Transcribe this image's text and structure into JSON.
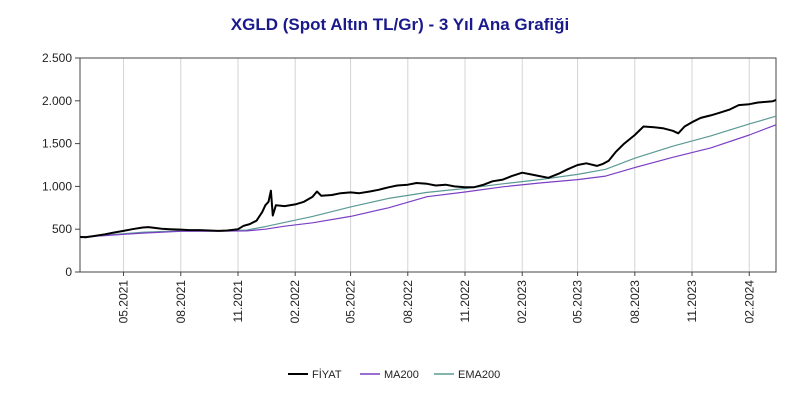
{
  "chart_data": {
    "type": "line",
    "title": "XGLD (Spot Altın TL/Gr) - 3 Yıl Ana Grafiği",
    "title_color": "#1a1a8c",
    "xlabel": "",
    "ylabel": "",
    "x_range": [
      "2021-02-20",
      "2024-03-15"
    ],
    "ylim": [
      0,
      2500
    ],
    "y_ticks": [
      0,
      500,
      1000,
      1500,
      2000,
      2500
    ],
    "y_tick_labels": [
      "0",
      "500",
      "1.000",
      "1.500",
      "2.000",
      "2.500"
    ],
    "x_ticks": [
      "2021-05-01",
      "2021-08-01",
      "2021-11-01",
      "2022-02-01",
      "2022-05-01",
      "2022-08-01",
      "2022-11-01",
      "2023-02-01",
      "2023-05-01",
      "2023-08-01",
      "2023-11-01",
      "2024-02-01"
    ],
    "x_tick_labels": [
      "05.2021",
      "08.2021",
      "11.2021",
      "02.2022",
      "05.2022",
      "08.2022",
      "11.2022",
      "02.2023",
      "05.2023",
      "08.2023",
      "11.2023",
      "02.2024"
    ],
    "grid": "vertical",
    "legend_position": "bottom-center",
    "series": [
      {
        "name": "FİYAT",
        "color": "#000000",
        "x": [
          "2021-02-20",
          "2021-03-01",
          "2021-03-15",
          "2021-04-01",
          "2021-04-15",
          "2021-05-01",
          "2021-05-15",
          "2021-06-01",
          "2021-06-10",
          "2021-06-20",
          "2021-07-01",
          "2021-07-15",
          "2021-08-01",
          "2021-08-15",
          "2021-09-01",
          "2021-09-15",
          "2021-10-01",
          "2021-10-15",
          "2021-11-01",
          "2021-11-10",
          "2021-11-20",
          "2021-12-01",
          "2021-12-10",
          "2021-12-15",
          "2021-12-20",
          "2021-12-24",
          "2021-12-27",
          "2022-01-01",
          "2022-01-15",
          "2022-02-01",
          "2022-02-15",
          "2022-03-01",
          "2022-03-08",
          "2022-03-15",
          "2022-04-01",
          "2022-04-15",
          "2022-05-01",
          "2022-05-15",
          "2022-06-01",
          "2022-06-15",
          "2022-07-01",
          "2022-07-15",
          "2022-08-01",
          "2022-08-15",
          "2022-09-01",
          "2022-09-15",
          "2022-10-01",
          "2022-10-15",
          "2022-11-01",
          "2022-11-15",
          "2022-12-01",
          "2022-12-15",
          "2023-01-01",
          "2023-01-15",
          "2023-02-01",
          "2023-02-15",
          "2023-03-01",
          "2023-03-15",
          "2023-04-01",
          "2023-04-15",
          "2023-05-01",
          "2023-05-15",
          "2023-06-01",
          "2023-06-10",
          "2023-06-20",
          "2023-07-01",
          "2023-07-15",
          "2023-08-01",
          "2023-08-15",
          "2023-09-01",
          "2023-09-15",
          "2023-10-01",
          "2023-10-10",
          "2023-10-20",
          "2023-11-01",
          "2023-11-15",
          "2023-12-01",
          "2023-12-15",
          "2024-01-01",
          "2024-01-15",
          "2024-02-01",
          "2024-02-15",
          "2024-03-01",
          "2024-03-10",
          "2024-03-15"
        ],
        "values": [
          410,
          405,
          420,
          440,
          460,
          480,
          500,
          520,
          525,
          515,
          505,
          500,
          495,
          490,
          490,
          485,
          480,
          485,
          500,
          540,
          560,
          600,
          700,
          780,
          820,
          950,
          660,
          780,
          770,
          790,
          820,
          880,
          940,
          890,
          900,
          920,
          930,
          920,
          940,
          960,
          990,
          1010,
          1020,
          1040,
          1030,
          1010,
          1020,
          1000,
          990,
          990,
          1020,
          1060,
          1080,
          1120,
          1160,
          1140,
          1120,
          1100,
          1150,
          1200,
          1250,
          1270,
          1240,
          1260,
          1300,
          1400,
          1500,
          1600,
          1700,
          1690,
          1680,
          1650,
          1620,
          1700,
          1750,
          1800,
          1830,
          1860,
          1900,
          1950,
          1960,
          1980,
          1990,
          1995,
          2010
        ]
      },
      {
        "name": "MA200",
        "color": "#7b3fc4",
        "x": [
          "2021-02-20",
          "2021-04-01",
          "2021-06-01",
          "2021-08-01",
          "2021-10-01",
          "2021-11-15",
          "2021-12-15",
          "2022-01-15",
          "2022-03-01",
          "2022-05-01",
          "2022-07-01",
          "2022-09-01",
          "2022-11-01",
          "2023-01-01",
          "2023-03-01",
          "2023-05-01",
          "2023-06-15",
          "2023-08-01",
          "2023-10-01",
          "2023-12-01",
          "2024-02-01",
          "2024-03-15"
        ],
        "values": [
          410,
          425,
          455,
          475,
          478,
          480,
          500,
          535,
          575,
          650,
          750,
          880,
          935,
          995,
          1040,
          1080,
          1120,
          1220,
          1340,
          1450,
          1600,
          1720
        ]
      },
      {
        "name": "EMA200",
        "color": "#5b9a94",
        "x": [
          "2021-02-20",
          "2021-04-01",
          "2021-06-01",
          "2021-08-01",
          "2021-10-01",
          "2021-11-15",
          "2021-12-15",
          "2022-01-15",
          "2022-03-01",
          "2022-05-01",
          "2022-07-01",
          "2022-09-01",
          "2022-11-01",
          "2023-01-01",
          "2023-03-01",
          "2023-05-01",
          "2023-06-15",
          "2023-08-01",
          "2023-10-01",
          "2023-12-01",
          "2024-02-01",
          "2024-03-15"
        ],
        "values": [
          400,
          430,
          465,
          480,
          482,
          490,
          530,
          580,
          650,
          760,
          860,
          930,
          975,
          1030,
          1080,
          1140,
          1200,
          1330,
          1470,
          1590,
          1730,
          1820
        ]
      }
    ]
  }
}
